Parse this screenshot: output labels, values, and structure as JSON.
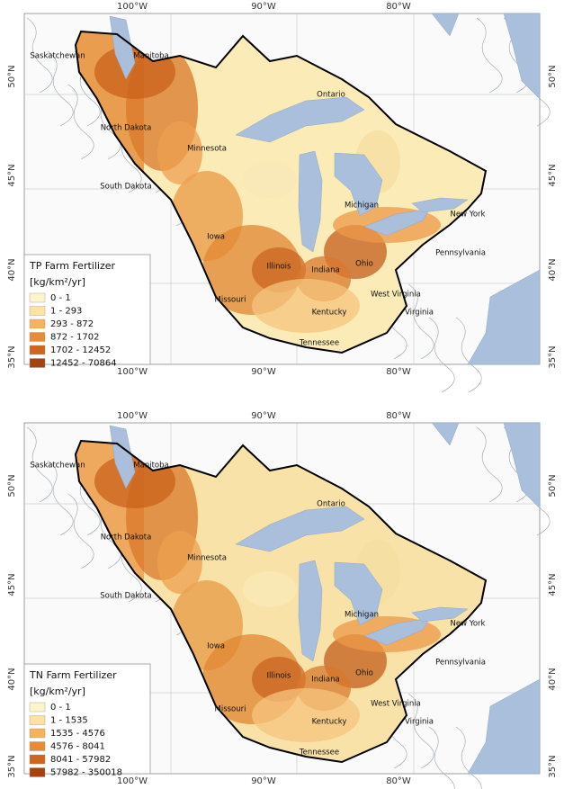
{
  "maps": [
    {
      "lon_labels": [
        "100°W",
        "90°W",
        "80°W"
      ],
      "lat_labels": [
        "50°N",
        "45°N",
        "40°N",
        "35°N"
      ],
      "places": [
        "Saskatchewan",
        "Manitoba",
        "Ontario",
        "North Dakota",
        "Minnesota",
        "South Dakota",
        "Michigan",
        "New York",
        "Iowa",
        "Illinois",
        "Indiana",
        "Ohio",
        "Pennsylvania",
        "Missouri",
        "West Virginia",
        "Kentucky",
        "Virginia",
        "Tennessee"
      ],
      "legend": {
        "title": "TP Farm Fertilizer",
        "unit": "[kg/km²/yr]",
        "classes": [
          "0 - 1",
          "1 - 293",
          "293 - 872",
          "872 - 1702",
          "1702 - 12452",
          "12452 - 70864"
        ]
      }
    },
    {
      "lon_labels": [
        "100°W",
        "90°W",
        "80°W"
      ],
      "lat_labels": [
        "50°N",
        "45°N",
        "40°N",
        "35°N"
      ],
      "places": [
        "Saskatchewan",
        "Manitoba",
        "Ontario",
        "North Dakota",
        "Minnesota",
        "South Dakota",
        "Michigan",
        "New York",
        "Iowa",
        "Illinois",
        "Indiana",
        "Ohio",
        "Pennsylvania",
        "Missouri",
        "West Virginia",
        "Kentucky",
        "Virginia",
        "Tennessee"
      ],
      "legend": {
        "title": "TN Farm Fertilizer",
        "unit": "[kg/km²/yr]",
        "classes": [
          "0 - 1",
          "1 - 1535",
          "1535 - 4576",
          "4576 - 8041",
          "8041 - 57982",
          "57982 - 350018"
        ]
      }
    }
  ]
}
